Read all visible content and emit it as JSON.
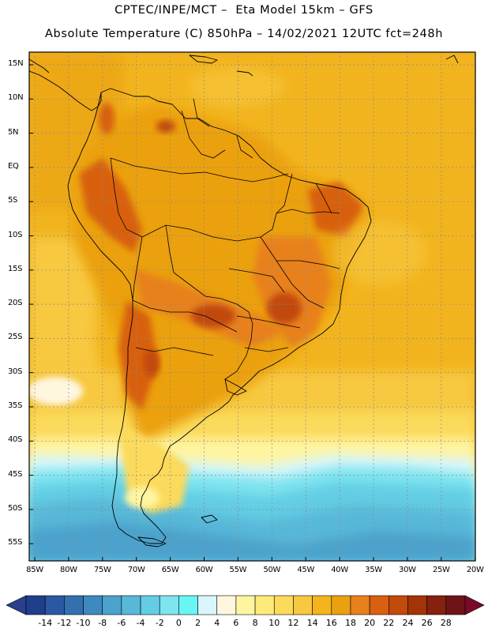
{
  "header": {
    "line1": "CPTEC/INPE/MCT –  Eta Model 15km – GFS",
    "line2": "Absolute Temperature (C) 850hPa – 14/02/2021 12UTC fct=248h"
  },
  "map": {
    "lat_labels": [
      "15N",
      "10N",
      "5N",
      "EQ",
      "5S",
      "10S",
      "15S",
      "20S",
      "25S",
      "30S",
      "35S",
      "40S",
      "45S",
      "50S",
      "55S"
    ],
    "lon_labels": [
      "85W",
      "80W",
      "75W",
      "70W",
      "65W",
      "60W",
      "55W",
      "50W",
      "45W",
      "40W",
      "35W",
      "30W",
      "25W",
      "20W"
    ]
  },
  "colorbar": {
    "labels": [
      "-14",
      "-12",
      "-10",
      "-8",
      "-6",
      "-4",
      "-2",
      "0",
      "2",
      "4",
      "6",
      "8",
      "10",
      "12",
      "14",
      "16",
      "18",
      "20",
      "22",
      "24",
      "26",
      "28"
    ],
    "colors": [
      "#1f3f8c",
      "#2a58a3",
      "#3470b0",
      "#3e8ac0",
      "#4ba2cc",
      "#58b8d8",
      "#63cde4",
      "#7ee4ef",
      "#6af5f5",
      "#d8f6fb",
      "#fff6e0",
      "#fff4a0",
      "#feea7a",
      "#fbda5c",
      "#f7c840",
      "#f2b51e",
      "#eba010",
      "#e8811c",
      "#d86010",
      "#c24a0a",
      "#a43408",
      "#862010",
      "#6e1418"
    ],
    "low_arrow_color": "#2a3f8e",
    "high_arrow_color": "#7a0a2a"
  }
}
